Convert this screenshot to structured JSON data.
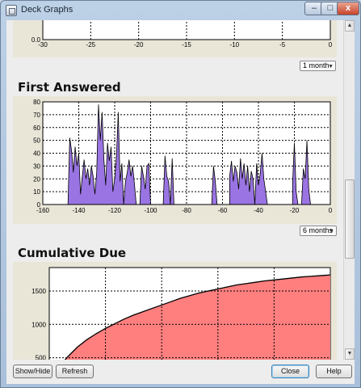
{
  "window": {
    "title": "Deck Graphs",
    "min_label": "–",
    "max_label": "□",
    "close_label": "x"
  },
  "sections": {
    "top": {
      "y_label": "0.0",
      "x_ticks": [
        "-30",
        "-25",
        "-20",
        "-15",
        "-10",
        "-5",
        "0"
      ],
      "range_select": "1 month"
    },
    "first_answered": {
      "title": "First Answered",
      "range_select": "6 months"
    },
    "cumulative_due": {
      "title": "Cumulative Due"
    }
  },
  "buttons": {
    "show_hide": "Show/Hide",
    "refresh": "Refresh",
    "close": "Close",
    "help": "Help"
  },
  "colors": {
    "first_answered_fill": "#9a74e3",
    "cumulative_fill": "#ff7f7f",
    "panel_bg": "#e9e6d8"
  },
  "chart_data": [
    {
      "type": "area",
      "name": "top-partial",
      "xlim": [
        -30,
        0
      ],
      "x_ticks": [
        -30,
        -25,
        -20,
        -15,
        -10,
        -5,
        0
      ],
      "y_ticks": [
        0.0
      ],
      "grid": true
    },
    {
      "type": "area",
      "title": "First Answered",
      "xlim": [
        -160,
        0
      ],
      "ylim": [
        0,
        80
      ],
      "x_ticks": [
        -160,
        -140,
        -120,
        -100,
        -80,
        -60,
        -40,
        -20,
        0
      ],
      "y_ticks": [
        0,
        10,
        20,
        30,
        40,
        50,
        60,
        70,
        80
      ],
      "grid": true,
      "x": [
        -146,
        -145,
        -144,
        -143,
        -142,
        -141,
        -140,
        -139,
        -138,
        -137,
        -136,
        -135,
        -134,
        -133,
        -132,
        -131,
        -130,
        -129,
        -128,
        -127,
        -126,
        -125,
        -124,
        -123,
        -122,
        -121,
        -120,
        -119,
        -118,
        -117,
        -116,
        -115,
        -114,
        -113,
        -112,
        -111,
        -110,
        -109,
        -108,
        -107,
        -106,
        -105,
        -104,
        -103,
        -102,
        -101,
        -100,
        -99,
        -98,
        -97,
        -96,
        -95,
        -94,
        -93,
        -92,
        -91,
        -90,
        -89,
        -88,
        -87,
        -86,
        -85,
        -84,
        -83,
        -82,
        -81,
        -80,
        -66,
        -65,
        -64,
        -63,
        -62,
        -56,
        -55,
        -54,
        -53,
        -52,
        -51,
        -50,
        -49,
        -48,
        -47,
        -46,
        -45,
        -44,
        -43,
        -42,
        -41,
        -40,
        -39,
        -38,
        -37,
        -36,
        -35,
        -34,
        -33,
        -32,
        -31,
        -30,
        -21,
        -20,
        -19,
        -18,
        -17,
        -16,
        -15,
        -14,
        -13,
        -12,
        -11,
        -10,
        -9,
        -8,
        -7,
        -6
      ],
      "values": [
        0,
        52,
        42,
        25,
        45,
        30,
        40,
        8,
        22,
        35,
        20,
        28,
        15,
        30,
        22,
        8,
        25,
        78,
        50,
        72,
        35,
        15,
        48,
        34,
        45,
        10,
        20,
        38,
        72,
        18,
        32,
        0,
        18,
        25,
        35,
        22,
        30,
        16,
        0,
        0,
        0,
        30,
        22,
        12,
        30,
        32,
        0,
        0,
        0,
        0,
        0,
        0,
        0,
        0,
        38,
        22,
        18,
        0,
        36,
        0,
        0,
        0,
        0,
        0,
        0,
        0,
        0,
        0,
        30,
        18,
        0,
        0,
        22,
        34,
        18,
        30,
        25,
        12,
        36,
        20,
        32,
        15,
        30,
        10,
        26,
        20,
        0,
        32,
        15,
        24,
        40,
        20,
        10,
        0,
        0,
        0,
        0,
        0,
        0,
        16,
        48,
        10,
        0,
        0,
        0,
        28,
        20,
        50,
        12,
        0,
        0,
        0,
        0,
        0,
        0
      ],
      "fill": "#9a74e3"
    },
    {
      "type": "area",
      "title": "Cumulative Due",
      "y_ticks": [
        500,
        1000,
        1500
      ],
      "ylim": [
        0,
        1850
      ],
      "xlim": [
        0,
        30
      ],
      "grid": true,
      "x": [
        0,
        1,
        2,
        3,
        4,
        5,
        6,
        7,
        8,
        9,
        10,
        11,
        12,
        13,
        14,
        15,
        16,
        17,
        18,
        19,
        20,
        21,
        22,
        23,
        24,
        25,
        26,
        27,
        28,
        29,
        30
      ],
      "values": [
        200,
        360,
        520,
        660,
        770,
        860,
        940,
        1010,
        1080,
        1140,
        1190,
        1240,
        1290,
        1340,
        1390,
        1430,
        1470,
        1500,
        1530,
        1560,
        1590,
        1610,
        1630,
        1650,
        1665,
        1680,
        1695,
        1710,
        1720,
        1730,
        1740
      ],
      "fill": "#ff7f7f"
    }
  ]
}
